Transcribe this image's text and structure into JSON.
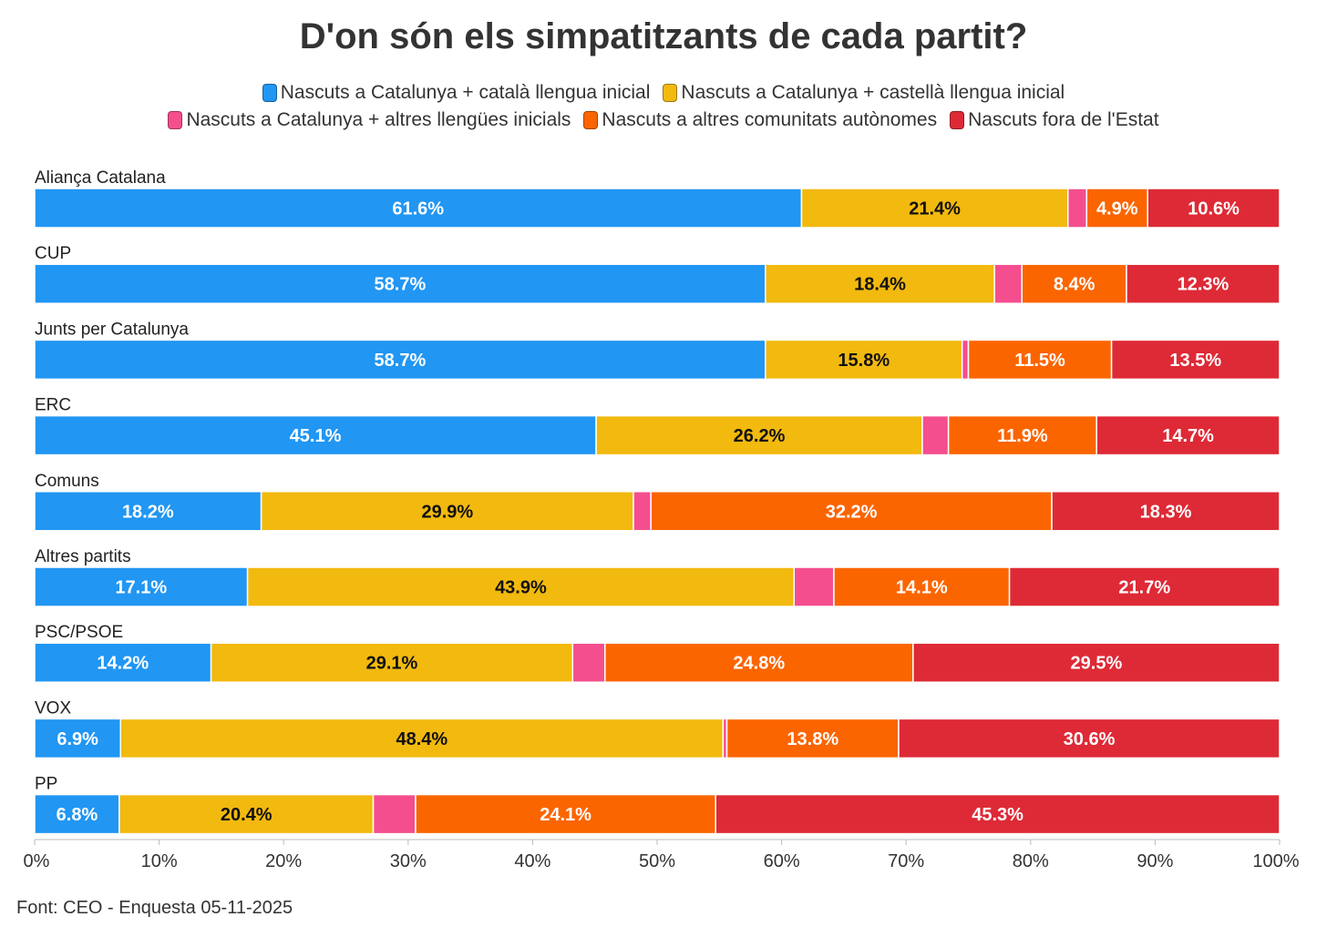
{
  "chart_data": {
    "type": "bar",
    "orientation": "horizontal",
    "stacked": true,
    "title": "D'on són els simpatitzants de cada partit?",
    "categories": [
      "Aliança Catalana",
      "CUP",
      "Junts per Catalunya",
      "ERC",
      "Comuns",
      "Altres partits",
      "PSC/PSOE",
      "VOX",
      "PP"
    ],
    "series": [
      {
        "name": "Nascuts a Catalunya + català llengua inicial",
        "color": "#2196f3",
        "label_color": "#ffffff",
        "values": [
          61.6,
          58.7,
          58.7,
          45.1,
          18.2,
          17.1,
          14.2,
          6.9,
          6.8
        ]
      },
      {
        "name": "Nascuts a Catalunya + castellà llengua inicial",
        "color": "#f2b90f",
        "label_color": "#111111",
        "values": [
          21.4,
          18.4,
          15.8,
          26.2,
          29.9,
          43.9,
          29.1,
          48.4,
          20.4
        ]
      },
      {
        "name": "Nascuts a Catalunya + altres llengües inicials",
        "color": "#f44e8e",
        "label_color": "#ffffff",
        "values": [
          1.5,
          2.2,
          0.5,
          2.1,
          1.4,
          3.2,
          2.6,
          0.3,
          3.4
        ]
      },
      {
        "name": "Nascuts a altres comunitats autònomes",
        "color": "#fb6500",
        "label_color": "#ffffff",
        "values": [
          4.9,
          8.4,
          11.5,
          11.9,
          32.2,
          14.1,
          24.8,
          13.8,
          24.1
        ]
      },
      {
        "name": "Nascuts fora de l'Estat",
        "color": "#de2a36",
        "label_color": "#ffffff",
        "values": [
          10.6,
          12.3,
          13.5,
          14.7,
          18.3,
          21.7,
          29.5,
          30.6,
          45.3
        ]
      }
    ],
    "label_min_value": 4,
    "xlim": [
      0,
      100
    ],
    "xticks": [
      "0%",
      "10%",
      "20%",
      "30%",
      "40%",
      "50%",
      "60%",
      "70%",
      "80%",
      "90%",
      "100%"
    ],
    "value_suffix": "%",
    "legend_position": "top"
  },
  "source": "Font: CEO - Enquesta 05-11-2025"
}
